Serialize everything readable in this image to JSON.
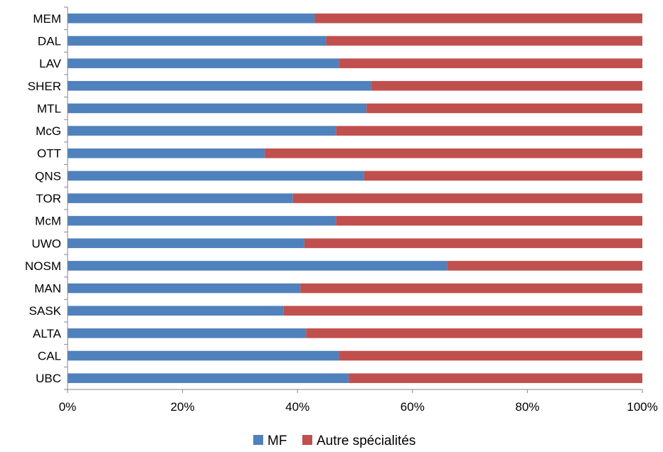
{
  "chart_data": {
    "type": "bar",
    "orientation": "horizontal",
    "stacked": "percent",
    "categories": [
      "MEM",
      "DAL",
      "LAV",
      "SHER",
      "MTL",
      "McG",
      "OTT",
      "QNS",
      "TOR",
      "McM",
      "UWO",
      "NOSM",
      "MAN",
      "SASK",
      "ALTA",
      "CAL",
      "UBC"
    ],
    "series": [
      {
        "name": "MF",
        "color": "#4F81BD",
        "values": [
          43,
          45,
          47.2,
          52.8,
          52,
          46.7,
          34.3,
          51.6,
          39.2,
          46.7,
          41.2,
          66,
          40.5,
          37.6,
          41.5,
          47.2,
          48.9
        ]
      },
      {
        "name": "Autre spécialités",
        "color": "#C0504D",
        "values": [
          57,
          55,
          52.8,
          47.2,
          48,
          53.3,
          65.7,
          48.4,
          60.8,
          53.3,
          58.8,
          34,
          59.5,
          62.4,
          58.5,
          52.8,
          51.1
        ]
      }
    ],
    "xlim": [
      0,
      100
    ],
    "xticks": [
      "0%",
      "20%",
      "40%",
      "60%",
      "80%",
      "100%"
    ],
    "grid": false,
    "legend_position": "bottom"
  }
}
